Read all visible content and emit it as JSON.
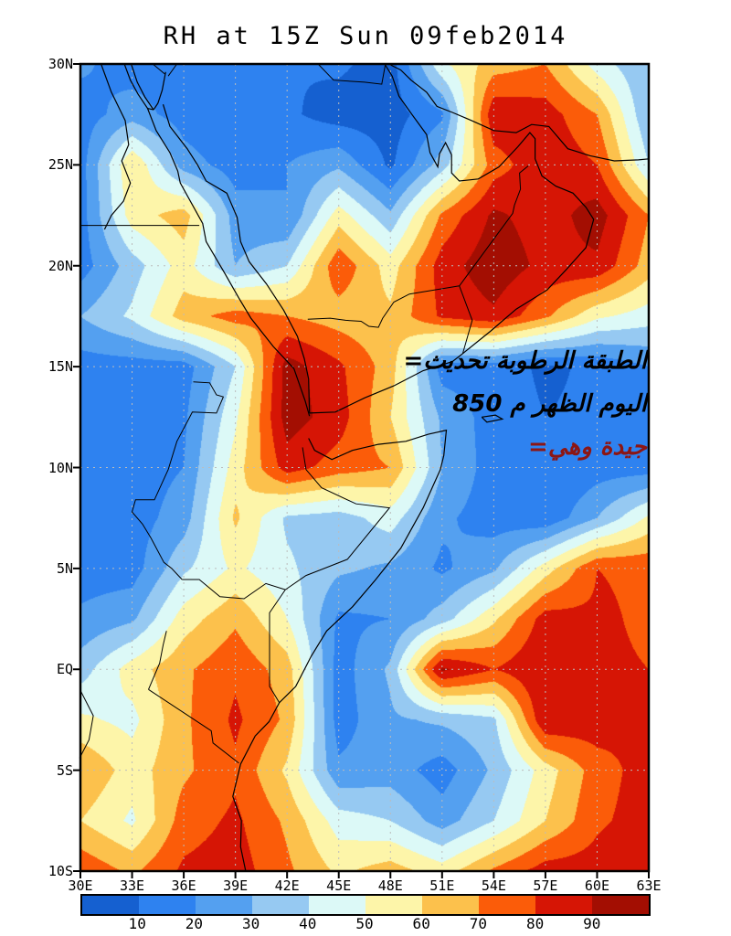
{
  "title": "RH at 15Z Sun 09feb2014",
  "annotation": {
    "line1": "=الطبقة الرطوبة تحديث",
    "line2": "850 اليوم الظهر م",
    "line3": "=جيدة وهي",
    "line12_color": "#000000",
    "line3_color": "#8c1614"
  },
  "axes": {
    "lat_labels": [
      {
        "text": "30N",
        "lat": 30
      },
      {
        "text": "25N",
        "lat": 25
      },
      {
        "text": "20N",
        "lat": 20
      },
      {
        "text": "15N",
        "lat": 15
      },
      {
        "text": "10N",
        "lat": 10
      },
      {
        "text": "5N",
        "lat": 5
      },
      {
        "text": "EQ",
        "lat": 0
      },
      {
        "text": "5S",
        "lat": -5
      },
      {
        "text": "10S",
        "lat": -10
      }
    ],
    "lon_labels": [
      {
        "text": "30E",
        "lon": 30
      },
      {
        "text": "33E",
        "lon": 33
      },
      {
        "text": "36E",
        "lon": 36
      },
      {
        "text": "39E",
        "lon": 39
      },
      {
        "text": "42E",
        "lon": 42
      },
      {
        "text": "45E",
        "lon": 45
      },
      {
        "text": "48E",
        "lon": 48
      },
      {
        "text": "51E",
        "lon": 51
      },
      {
        "text": "54E",
        "lon": 54
      },
      {
        "text": "57E",
        "lon": 57
      },
      {
        "text": "60E",
        "lon": 60
      },
      {
        "text": "63E",
        "lon": 63
      }
    ],
    "grid_lons": [
      33,
      36,
      39,
      42,
      45,
      48,
      51,
      54,
      57,
      60
    ],
    "grid_lats": [
      25,
      20,
      15,
      10,
      5,
      0,
      -5
    ],
    "gridline_color": "#bcbcbc"
  },
  "colorbar": {
    "tick_values": [
      "10",
      "20",
      "30",
      "40",
      "50",
      "60",
      "70",
      "80",
      "90"
    ]
  },
  "chart_data": {
    "type": "heatmap",
    "title": "RH at 15Z Sun 09feb2014",
    "field": "Relative humidity (%), filled contours",
    "lon_range": [
      30,
      63
    ],
    "lat_range": [
      -10,
      30
    ],
    "levels": [
      10,
      20,
      30,
      40,
      50,
      60,
      70,
      80,
      90
    ],
    "colors": [
      "#1560d0",
      "#2e82f0",
      "#54a0f0",
      "#96c9f2",
      "#dcf9f7",
      "#fdf5a9",
      "#fcc14c",
      "#fb5c09",
      "#d61505",
      "#a30e02"
    ],
    "grid_lons": [
      30,
      33,
      36,
      39,
      42,
      45,
      48,
      51,
      54,
      57,
      60,
      63
    ],
    "grid_lats": [
      30,
      27.5,
      25,
      22.5,
      20,
      17.5,
      15,
      12.5,
      10,
      7.5,
      5,
      2.5,
      0,
      -2.5,
      -5,
      -7.5,
      -10
    ],
    "rh_grid": [
      [
        22,
        15,
        15,
        10,
        10,
        12,
        5,
        48,
        65,
        70,
        45,
        30
      ],
      [
        15,
        25,
        15,
        10,
        12,
        5,
        5,
        18,
        88,
        85,
        70,
        30
      ],
      [
        15,
        60,
        25,
        15,
        20,
        28,
        8,
        35,
        75,
        88,
        80,
        40
      ],
      [
        15,
        55,
        65,
        25,
        20,
        55,
        32,
        72,
        92,
        85,
        95,
        70
      ],
      [
        15,
        35,
        55,
        30,
        40,
        78,
        55,
        85,
        97,
        87,
        88,
        65
      ],
      [
        30,
        42,
        65,
        75,
        70,
        65,
        62,
        82,
        88,
        72,
        52,
        45
      ],
      [
        15,
        15,
        15,
        40,
        95,
        82,
        65,
        15,
        15,
        8,
        12,
        20
      ],
      [
        15,
        15,
        18,
        48,
        95,
        85,
        60,
        28,
        15,
        10,
        12,
        15
      ],
      [
        15,
        15,
        20,
        55,
        85,
        75,
        70,
        30,
        15,
        10,
        15,
        15
      ],
      [
        15,
        15,
        25,
        62,
        38,
        35,
        45,
        22,
        15,
        12,
        30,
        52
      ],
      [
        15,
        15,
        38,
        52,
        42,
        32,
        28,
        18,
        28,
        55,
        80,
        78
      ],
      [
        22,
        28,
        55,
        68,
        50,
        18,
        20,
        35,
        58,
        85,
        82,
        78
      ],
      [
        35,
        55,
        68,
        78,
        65,
        15,
        32,
        92,
        80,
        90,
        82,
        80
      ],
      [
        52,
        47,
        68,
        82,
        68,
        15,
        28,
        32,
        38,
        90,
        86,
        80
      ],
      [
        70,
        55,
        68,
        78,
        58,
        22,
        25,
        15,
        32,
        55,
        75,
        85
      ],
      [
        60,
        48,
        75,
        82,
        68,
        45,
        40,
        25,
        40,
        60,
        78,
        85
      ],
      [
        78,
        68,
        82,
        85,
        72,
        58,
        65,
        55,
        72,
        85,
        85,
        88
      ]
    ]
  },
  "map": {
    "coastlines": [
      [
        [
          32.55,
          30
        ],
        [
          32.9,
          29.2
        ],
        [
          33.35,
          28.5
        ],
        [
          33.9,
          27.8
        ],
        [
          34.25,
          27.73
        ]
      ],
      [
        [
          32.95,
          30
        ],
        [
          33.3,
          29.1
        ],
        [
          33.75,
          28.35
        ],
        [
          34.25,
          27.73
        ]
      ],
      [
        [
          34.95,
          29.6
        ],
        [
          34.75,
          28.7
        ],
        [
          34.5,
          28.05
        ],
        [
          34.25,
          27.73
        ]
      ],
      [
        [
          33.9,
          27.8
        ],
        [
          34.4,
          26.7
        ],
        [
          35.2,
          25.6
        ],
        [
          35.65,
          24.7
        ],
        [
          35.8,
          24.1
        ],
        [
          37.1,
          22.1
        ],
        [
          37.3,
          21.2
        ],
        [
          38.4,
          19.6
        ],
        [
          39.2,
          18.4
        ],
        [
          39.9,
          17.4
        ],
        [
          41.2,
          16.0
        ],
        [
          42.4,
          14.9
        ],
        [
          43.05,
          13.3
        ],
        [
          43.3,
          12.55
        ]
      ],
      [
        [
          34.8,
          28.0
        ],
        [
          35.2,
          26.9
        ],
        [
          36.2,
          25.8
        ],
        [
          36.8,
          25.0
        ],
        [
          37.3,
          24.2
        ],
        [
          38.5,
          23.6
        ],
        [
          39.1,
          22.4
        ],
        [
          39.3,
          21.2
        ],
        [
          39.8,
          20.2
        ],
        [
          40.8,
          19.1
        ],
        [
          41.8,
          17.8
        ],
        [
          42.6,
          16.5
        ],
        [
          43.0,
          15.4
        ],
        [
          43.25,
          14.4
        ],
        [
          43.3,
          12.7
        ]
      ],
      [
        [
          43.3,
          12.7
        ],
        [
          44.8,
          12.75
        ],
        [
          46.5,
          13.45
        ],
        [
          48.2,
          14.05
        ],
        [
          49.9,
          14.8
        ],
        [
          51.6,
          15.25
        ],
        [
          52.2,
          15.65
        ],
        [
          53.8,
          16.75
        ],
        [
          55.3,
          17.85
        ],
        [
          57.1,
          18.8
        ],
        [
          58.2,
          19.8
        ],
        [
          59.35,
          20.9
        ],
        [
          59.8,
          22.3
        ],
        [
          59.35,
          22.9
        ],
        [
          58.6,
          23.6
        ],
        [
          57.6,
          23.95
        ],
        [
          56.8,
          24.45
        ],
        [
          56.4,
          25.3
        ],
        [
          56.4,
          26.3
        ],
        [
          56.1,
          26.6
        ],
        [
          55.4,
          25.9
        ],
        [
          54.3,
          24.9
        ],
        [
          53.1,
          24.3
        ],
        [
          52.0,
          24.2
        ],
        [
          51.55,
          24.6
        ],
        [
          51.55,
          25.5
        ],
        [
          51.2,
          26.1
        ],
        [
          50.85,
          25.55
        ],
        [
          50.75,
          24.9
        ],
        [
          50.3,
          25.6
        ],
        [
          50.1,
          26.5
        ],
        [
          49.25,
          27.5
        ],
        [
          48.5,
          28.4
        ],
        [
          48.1,
          29.4
        ],
        [
          47.7,
          29.95
        ]
      ],
      [
        [
          47.9,
          30
        ],
        [
          48.6,
          29.7
        ],
        [
          49.2,
          29.2
        ],
        [
          50.1,
          28.6
        ],
        [
          50.7,
          27.9
        ],
        [
          51.6,
          27.6
        ],
        [
          52.7,
          27.2
        ],
        [
          54.0,
          26.7
        ],
        [
          55.3,
          26.6
        ],
        [
          56.2,
          27.0
        ],
        [
          57.2,
          26.9
        ],
        [
          58.3,
          25.8
        ],
        [
          59.6,
          25.45
        ],
        [
          61.0,
          25.2
        ],
        [
          62.4,
          25.25
        ],
        [
          63,
          25.3
        ]
      ],
      [
        [
          43.25,
          11.45
        ],
        [
          43.6,
          10.85
        ],
        [
          44.6,
          10.4
        ],
        [
          45.8,
          10.85
        ],
        [
          47.3,
          11.15
        ],
        [
          48.9,
          11.3
        ],
        [
          50.2,
          11.65
        ],
        [
          51.25,
          11.85
        ],
        [
          51.1,
          10.6
        ],
        [
          50.9,
          9.9
        ],
        [
          49.9,
          8.0
        ],
        [
          48.6,
          6.0
        ],
        [
          47.1,
          4.4
        ],
        [
          45.8,
          3.1
        ],
        [
          44.3,
          1.9
        ],
        [
          43.4,
          0.65
        ],
        [
          42.5,
          -0.85
        ],
        [
          41.55,
          -1.65
        ],
        [
          40.95,
          -2.6
        ],
        [
          40.15,
          -3.3
        ],
        [
          39.3,
          -4.7
        ],
        [
          38.85,
          -6.3
        ],
        [
          39.35,
          -7.5
        ],
        [
          39.3,
          -8.8
        ],
        [
          39.6,
          -10
        ]
      ],
      [
        [
          53.3,
          12.5
        ],
        [
          54.1,
          12.6
        ],
        [
          54.5,
          12.4
        ],
        [
          53.6,
          12.25
        ],
        [
          53.3,
          12.5
        ]
      ],
      [
        [
          31.2,
          30
        ],
        [
          31.8,
          28.6
        ],
        [
          32.6,
          27.2
        ],
        [
          32.8,
          26.0
        ],
        [
          32.4,
          25.2
        ],
        [
          32.9,
          24.1
        ],
        [
          32.5,
          23.2
        ],
        [
          31.8,
          22.5
        ],
        [
          31.4,
          21.8
        ]
      ]
    ],
    "borders": [
      [
        [
          30,
          22
        ],
        [
          36.9,
          22
        ]
      ],
      [
        [
          34.2,
          30
        ],
        [
          34.9,
          29.5
        ]
      ],
      [
        [
          35.1,
          29.4
        ],
        [
          35.6,
          30
        ]
      ],
      [
        [
          43.8,
          30
        ],
        [
          44.7,
          29.2
        ],
        [
          46.5,
          29.1
        ],
        [
          47.5,
          29.0
        ],
        [
          47.7,
          29.95
        ]
      ],
      [
        [
          36.55,
          14.25
        ],
        [
          37.5,
          14.2
        ],
        [
          37.9,
          13.6
        ],
        [
          38.3,
          13.5
        ],
        [
          37.9,
          12.7
        ],
        [
          36.5,
          12.75
        ],
        [
          36.1,
          12.1
        ],
        [
          35.6,
          11.3
        ],
        [
          35.1,
          9.9
        ],
        [
          34.3,
          8.4
        ],
        [
          33.2,
          8.4
        ],
        [
          33.0,
          7.8
        ],
        [
          33.6,
          7.2
        ],
        [
          34.1,
          6.5
        ],
        [
          34.85,
          5.3
        ],
        [
          35.3,
          5.0
        ],
        [
          35.9,
          4.45
        ]
      ],
      [
        [
          35.9,
          4.45
        ],
        [
          36.9,
          4.45
        ],
        [
          38.1,
          3.6
        ],
        [
          39.5,
          3.5
        ],
        [
          40.77,
          4.25
        ],
        [
          41.9,
          3.95
        ]
      ],
      [
        [
          41.9,
          3.95
        ],
        [
          40.98,
          2.8
        ],
        [
          40.98,
          -0.85
        ],
        [
          41.55,
          -1.65
        ]
      ],
      [
        [
          42.9,
          11.0
        ],
        [
          43.1,
          9.9
        ],
        [
          44.0,
          9.0
        ],
        [
          46.0,
          8.2
        ],
        [
          47.95,
          8.0
        ],
        [
          45.5,
          5.45
        ],
        [
          44.0,
          4.95
        ],
        [
          43.1,
          4.65
        ],
        [
          41.9,
          3.95
        ]
      ],
      [
        [
          33.95,
          -1.0
        ],
        [
          37.6,
          -3.05
        ],
        [
          37.7,
          -3.65
        ],
        [
          39.2,
          -4.65
        ]
      ],
      [
        [
          35.0,
          1.9
        ],
        [
          34.8,
          1.2
        ],
        [
          34.6,
          0.3
        ],
        [
          33.95,
          -1.0
        ]
      ],
      [
        [
          43.2,
          17.35
        ],
        [
          44.5,
          17.4
        ],
        [
          45.4,
          17.3
        ],
        [
          46.3,
          17.25
        ],
        [
          46.75,
          17.0
        ],
        [
          47.3,
          16.95
        ],
        [
          47.55,
          17.4
        ],
        [
          48.2,
          18.2
        ],
        [
          49.1,
          18.6
        ],
        [
          52.0,
          19.0
        ]
      ],
      [
        [
          52.0,
          19.0
        ],
        [
          52.75,
          17.3
        ],
        [
          52.2,
          15.65
        ]
      ],
      [
        [
          52.0,
          19.0
        ],
        [
          55.1,
          22.6
        ],
        [
          55.2,
          23.0
        ],
        [
          55.55,
          23.8
        ],
        [
          55.5,
          24.6
        ],
        [
          56.0,
          24.95
        ]
      ],
      [
        [
          30,
          -1.05
        ],
        [
          30.75,
          -2.3
        ],
        [
          30.5,
          -3.5
        ],
        [
          29.95,
          -4.4
        ]
      ]
    ]
  }
}
